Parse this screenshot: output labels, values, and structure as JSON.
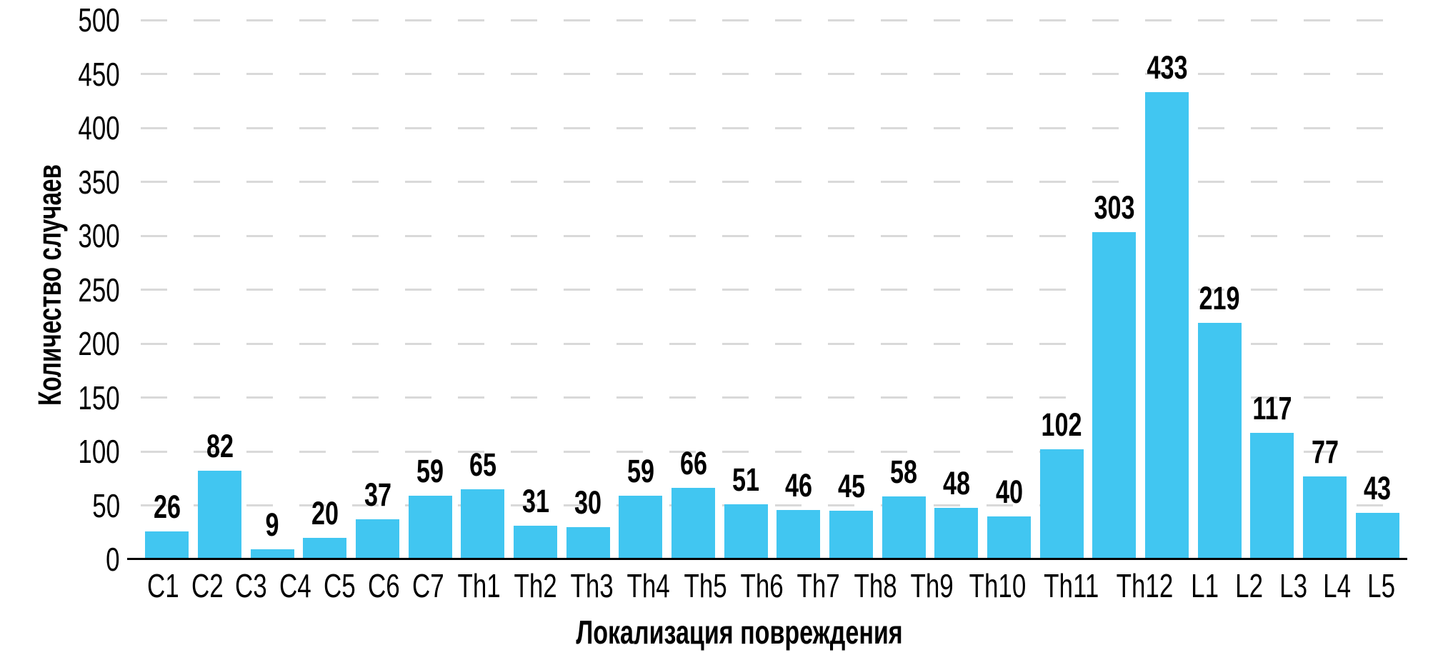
{
  "chart_data": {
    "type": "bar",
    "title": "",
    "xlabel": "Локализация повреждения",
    "ylabel": "Количество случаев",
    "categories": [
      "C1",
      "C2",
      "C3",
      "C4",
      "C5",
      "C6",
      "C7",
      "Th1",
      "Th2",
      "Th3",
      "Th4",
      "Th5",
      "Th6",
      "Th7",
      "Th8",
      "Th9",
      "Th10",
      "Th11",
      "Th12",
      "L1",
      "L2",
      "L3",
      "L4",
      "L5"
    ],
    "values": [
      26,
      82,
      9,
      20,
      37,
      59,
      65,
      31,
      30,
      59,
      66,
      51,
      46,
      45,
      58,
      48,
      40,
      102,
      303,
      433,
      219,
      117,
      77,
      43
    ],
    "ylim": [
      0,
      500
    ],
    "ytick_step": 50,
    "yticks": [
      0,
      50,
      100,
      150,
      200,
      250,
      300,
      350,
      400,
      450,
      500
    ],
    "grid": "horizontal-dashed",
    "legend": "none",
    "data_labels_shown": true,
    "colors": {
      "bar": "#41C6F1",
      "gridline": "#D9D9D9",
      "axis": "#000000",
      "text": "#000000",
      "background": "#FFFFFF"
    }
  }
}
